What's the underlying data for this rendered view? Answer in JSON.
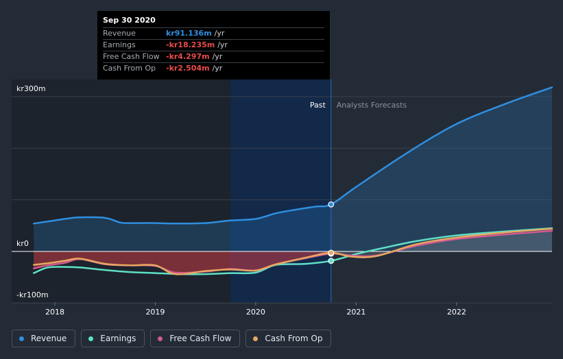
{
  "chart_data": {
    "type": "area",
    "title": "",
    "currency_unit": "/yr",
    "y_tick_labels": [
      {
        "label": "kr300m",
        "value": 300
      },
      {
        "label": "kr0",
        "value": 0
      },
      {
        "label": "-kr100m",
        "value": -100
      }
    ],
    "ylim": [
      -100,
      300
    ],
    "x_tick_labels": [
      {
        "label": "2018",
        "value": 2018.0
      },
      {
        "label": "2019",
        "value": 2019.0
      },
      {
        "label": "2020",
        "value": 2020.0
      },
      {
        "label": "2021",
        "value": 2021.0
      },
      {
        "label": "2022",
        "value": 2022.0
      }
    ],
    "xlim": [
      2017.57,
      2022.95
    ],
    "past_label": "Past",
    "forecast_label": "Analysts Forecasts",
    "past_forecast_divider_x": 2020.75,
    "highlight_start_x": 2019.75,
    "series": [
      {
        "name": "Revenue",
        "color": "#2f8fe0",
        "points": [
          [
            2017.79,
            54
          ],
          [
            2017.93,
            58
          ],
          [
            2018.1,
            63
          ],
          [
            2018.25,
            66
          ],
          [
            2018.5,
            65
          ],
          [
            2018.65,
            56
          ],
          [
            2018.75,
            55
          ],
          [
            2019.0,
            55
          ],
          [
            2019.2,
            54
          ],
          [
            2019.5,
            55
          ],
          [
            2019.75,
            60
          ],
          [
            2020.0,
            63
          ],
          [
            2020.2,
            74
          ],
          [
            2020.4,
            81
          ],
          [
            2020.6,
            87
          ],
          [
            2020.75,
            91.136
          ],
          [
            2021.0,
            125
          ],
          [
            2021.5,
            190
          ],
          [
            2022.0,
            247
          ],
          [
            2022.5,
            287
          ],
          [
            2022.95,
            318
          ]
        ]
      },
      {
        "name": "Earnings",
        "color": "#5fe0c6",
        "points": [
          [
            2017.79,
            -42
          ],
          [
            2017.93,
            -31
          ],
          [
            2018.1,
            -30
          ],
          [
            2018.25,
            -31
          ],
          [
            2018.5,
            -36
          ],
          [
            2018.75,
            -40
          ],
          [
            2019.0,
            -42
          ],
          [
            2019.25,
            -44
          ],
          [
            2019.5,
            -44
          ],
          [
            2019.75,
            -42
          ],
          [
            2020.0,
            -41
          ],
          [
            2020.2,
            -26
          ],
          [
            2020.5,
            -24
          ],
          [
            2020.75,
            -18.235
          ],
          [
            2021.0,
            -5
          ],
          [
            2021.3,
            8
          ],
          [
            2021.6,
            20
          ],
          [
            2022.0,
            31
          ],
          [
            2022.5,
            39
          ],
          [
            2022.95,
            45
          ]
        ]
      },
      {
        "name": "Free Cash Flow",
        "color": "#d25a92",
        "points": [
          [
            2017.79,
            -33
          ],
          [
            2017.93,
            -27
          ],
          [
            2018.1,
            -22
          ],
          [
            2018.25,
            -15
          ],
          [
            2018.5,
            -25
          ],
          [
            2018.75,
            -27
          ],
          [
            2019.0,
            -28
          ],
          [
            2019.2,
            -41
          ],
          [
            2019.5,
            -39
          ],
          [
            2019.75,
            -34
          ],
          [
            2020.0,
            -37
          ],
          [
            2020.2,
            -25
          ],
          [
            2020.5,
            -13
          ],
          [
            2020.75,
            -4.297
          ],
          [
            2020.95,
            -8
          ],
          [
            2021.2,
            -8
          ],
          [
            2021.6,
            11
          ],
          [
            2022.0,
            24
          ],
          [
            2022.5,
            33
          ],
          [
            2022.95,
            40
          ]
        ]
      },
      {
        "name": "Cash From Op",
        "color": "#e8a860",
        "points": [
          [
            2017.79,
            -26
          ],
          [
            2017.93,
            -23
          ],
          [
            2018.1,
            -18
          ],
          [
            2018.25,
            -14
          ],
          [
            2018.5,
            -24
          ],
          [
            2018.75,
            -27
          ],
          [
            2019.0,
            -27
          ],
          [
            2019.2,
            -44
          ],
          [
            2019.5,
            -38
          ],
          [
            2019.75,
            -35
          ],
          [
            2020.0,
            -37
          ],
          [
            2020.2,
            -25
          ],
          [
            2020.5,
            -12
          ],
          [
            2020.75,
            -2.504
          ],
          [
            2020.95,
            -10
          ],
          [
            2021.2,
            -9
          ],
          [
            2021.6,
            14
          ],
          [
            2022.0,
            27
          ],
          [
            2022.5,
            37
          ],
          [
            2022.95,
            44
          ]
        ]
      }
    ]
  },
  "tooltip": {
    "date": "Sep 30 2020",
    "rows": [
      {
        "label": "Revenue",
        "value": "kr91.136m",
        "unit": "/yr",
        "color": "#2f8fe0"
      },
      {
        "label": "Earnings",
        "value": "-kr18.235m",
        "unit": "/yr",
        "color": "#e94b4b"
      },
      {
        "label": "Free Cash Flow",
        "value": "-kr4.297m",
        "unit": "/yr",
        "color": "#e94b4b"
      },
      {
        "label": "Cash From Op",
        "value": "-kr2.504m",
        "unit": "/yr",
        "color": "#e94b4b"
      }
    ]
  },
  "legend": [
    {
      "label": "Revenue",
      "color": "#2f8fe0"
    },
    {
      "label": "Earnings",
      "color": "#5fe0c6"
    },
    {
      "label": "Free Cash Flow",
      "color": "#d25a92"
    },
    {
      "label": "Cash From Op",
      "color": "#e8a860"
    }
  ]
}
